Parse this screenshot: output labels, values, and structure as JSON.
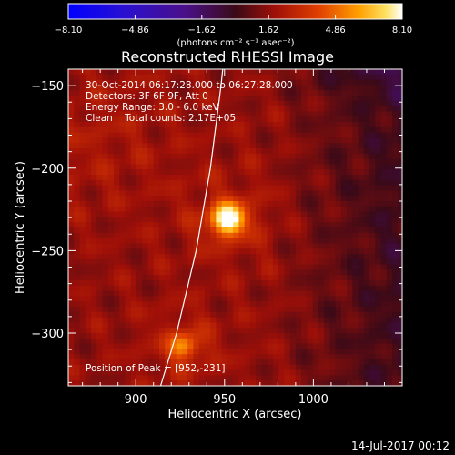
{
  "chart_data": {
    "type": "heatmap",
    "title": "Reconstructed RHESSI Image",
    "xlabel": "Heliocentric X (arcsec)",
    "ylabel": "Heliocentric Y (arcsec)",
    "xlim": [
      862,
      1050
    ],
    "ylim": [
      -332,
      -140
    ],
    "x_ticks": [
      "900",
      "950",
      "1000"
    ],
    "x_tick_values": [
      900,
      950,
      1000
    ],
    "y_ticks": [
      "-150",
      "-200",
      "-250",
      "-300"
    ],
    "y_tick_values": [
      -150,
      -200,
      -250,
      -300
    ],
    "colorbar": {
      "ticks": [
        "-8.10",
        "-4.86",
        "-1.62",
        "1.62",
        "4.86",
        "8.10"
      ],
      "tick_values": [
        -8.1,
        -4.86,
        -1.62,
        1.62,
        4.86,
        8.1
      ],
      "range": [
        -8.1,
        8.1
      ],
      "units_label": "(photons cm⁻² s⁻¹ asec⁻²)",
      "colormap": "blue-purple-red-orange-yellow-white"
    },
    "annotations": [
      "30-Oct-2014 06:17:28.000 to 06:27:28.000",
      "Detectors: 3F 6F 9F, Att 0",
      "Energy Range: 3.0 - 6.0 keV",
      "Clean    Total counts: 2.17E+05"
    ],
    "peak_label": "Position of Peak = [952,-231]",
    "sources": [
      {
        "x": 952,
        "y": -231,
        "peak": 8.1
      },
      {
        "x": 927,
        "y": -308,
        "peak": 4.6
      }
    ],
    "limb_curve": [
      [
        914,
        -332
      ],
      [
        923,
        -300
      ],
      [
        934,
        -250
      ],
      [
        942,
        -200
      ],
      [
        948,
        -150
      ],
      [
        949,
        -140
      ]
    ]
  },
  "footer": {
    "timestamp": "14-Jul-2017 00:12"
  },
  "colors": {
    "background": "#000000",
    "foreground": "#ffffff"
  }
}
